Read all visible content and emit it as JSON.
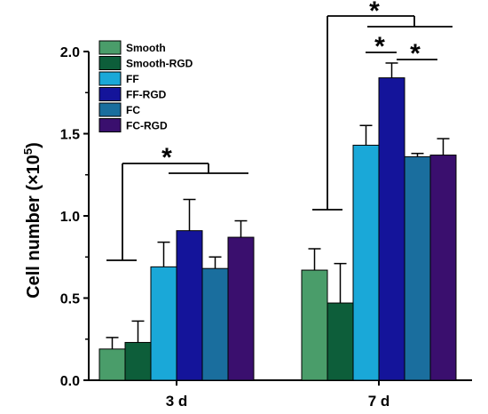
{
  "chart_data": {
    "type": "bar",
    "ylabel": "Cell number (×10",
    "ylabel_sup": "5",
    "ylabel_close": ")",
    "xlabel": "",
    "ylim": [
      0,
      2.0
    ],
    "yticks": [
      "0.0",
      "0.5",
      "1.0",
      "1.5",
      "2.0"
    ],
    "categories": [
      "3 d",
      "7 d"
    ],
    "series": [
      {
        "name": "Smooth",
        "color": "#4a9d6a",
        "values": [
          0.19,
          0.67
        ],
        "errors": [
          0.07,
          0.13
        ]
      },
      {
        "name": "Smooth-RGD",
        "color": "#0d5e3a",
        "values": [
          0.23,
          0.47
        ],
        "errors": [
          0.13,
          0.24
        ]
      },
      {
        "name": "FF",
        "color": "#1aa8d8",
        "values": [
          0.69,
          1.43
        ],
        "errors": [
          0.15,
          0.12
        ]
      },
      {
        "name": "FF-RGD",
        "color": "#14149a",
        "values": [
          0.91,
          1.84
        ],
        "errors": [
          0.19,
          0.09
        ]
      },
      {
        "name": "FC",
        "color": "#1a6e9e",
        "values": [
          0.68,
          1.36
        ],
        "errors": [
          0.07,
          0.02
        ]
      },
      {
        "name": "FC-RGD",
        "color": "#3a0f6e",
        "values": [
          0.87,
          1.37
        ],
        "errors": [
          0.1,
          0.1
        ]
      }
    ],
    "legend_position": "top-left",
    "significance_marker": "*",
    "annotations": [
      "*",
      "*",
      "*",
      "*"
    ]
  }
}
